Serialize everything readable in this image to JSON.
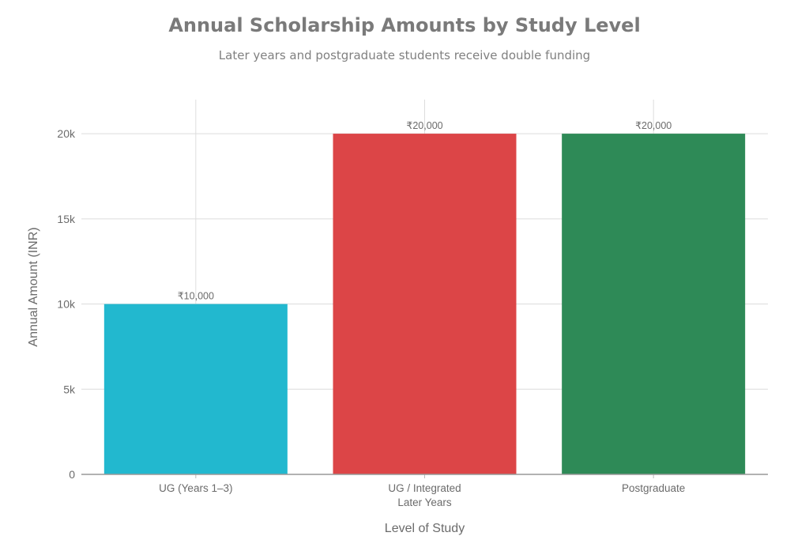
{
  "chart_data": {
    "type": "bar",
    "title": "Annual Scholarship Amounts by Study Level",
    "subtitle": "Later years and postgraduate students receive double funding",
    "xlabel": "Level of Study",
    "ylabel": "Annual Amount (INR)",
    "categories": [
      [
        "UG (Years 1–3)"
      ],
      [
        "UG / Integrated",
        "Later Years"
      ],
      [
        "Postgraduate"
      ]
    ],
    "values": [
      10000,
      20000,
      20000
    ],
    "data_labels": [
      "₹10,000",
      "₹20,000",
      "₹20,000"
    ],
    "colors": [
      "#22b8cf",
      "#dc4547",
      "#2e8a57"
    ],
    "ylim": [
      0,
      22000
    ],
    "yticks": [
      0,
      5000,
      10000,
      15000,
      20000
    ],
    "ytick_labels": [
      "0",
      "5k",
      "10k",
      "15k",
      "20k"
    ],
    "grid": true,
    "legend": "none"
  }
}
